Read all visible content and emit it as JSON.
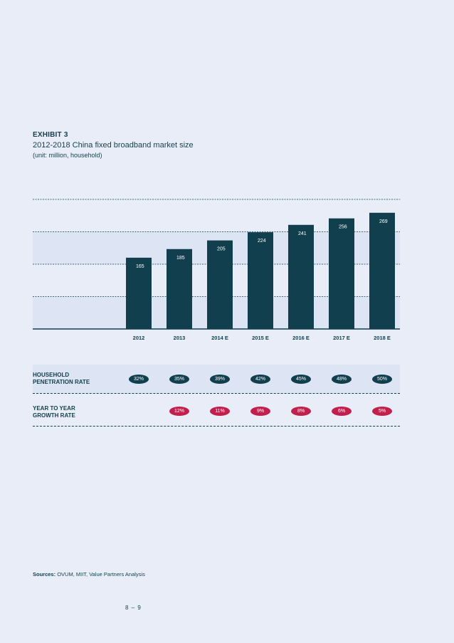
{
  "header": {
    "exhibit": "EXHIBIT 3",
    "title": "2012-2018 China fixed broadband market size",
    "subtitle": "(unit: million, household)"
  },
  "chart_data": {
    "type": "bar",
    "categories": [
      "2012",
      "2013",
      "2014 E",
      "2015 E",
      "2016 E",
      "2017 E",
      "2018 E"
    ],
    "values": [
      165,
      185,
      205,
      224,
      241,
      256,
      269
    ],
    "ylim": [
      0,
      300
    ],
    "grid": true,
    "bar_color": "#123f4e"
  },
  "metrics": {
    "penetration": {
      "label": "HOUSEHOLD\nPENETRATION RATE",
      "values": [
        "32%",
        "35%",
        "39%",
        "42%",
        "45%",
        "48%",
        "50%"
      ],
      "color": "#123f4e"
    },
    "growth": {
      "label": "YEAR TO YEAR\nGROWTH RATE",
      "values": [
        "",
        "12%",
        "11%",
        "9%",
        "8%",
        "6%",
        "5%"
      ],
      "color": "#c21f4d"
    }
  },
  "footer": {
    "sources_label": "Sources:",
    "sources_text": " OVUM, MIIT, Value Partners Analysis",
    "page_number": "8 – 9"
  }
}
